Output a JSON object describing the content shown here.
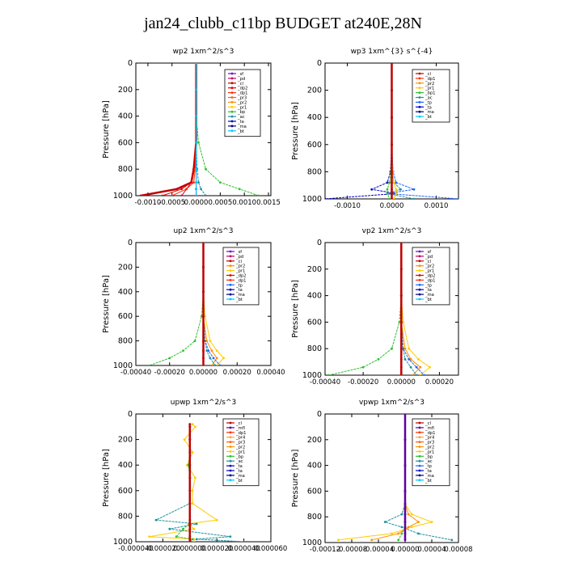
{
  "title": "jan24_clubb_c11bp  BUDGET at240E,28N",
  "colors": {
    "bt": "#00c8ff",
    "ma": "#000080",
    "ta": "#0000c8",
    "tp": "#1e64ff",
    "ac": "#2090a0",
    "bp": "#30c030",
    "pr1": "#ffcc00",
    "pr2": "#ff9000",
    "pr3": "#ff6000",
    "dp1": "#ff3000",
    "dp2": "#e00000",
    "pd": "#c00060",
    "sf": "#8000c0",
    "cl": "#c00000",
    "mfl": "#6000a0",
    "pr4": "#ffa040"
  },
  "chart_data": [
    {
      "type": "line",
      "title": "wp2   1xm^2/s^3",
      "ylabel": "Pressure [hPa]",
      "ylim": [
        1000,
        0
      ],
      "xlim": [
        -0.00125,
        0.00155
      ],
      "xticks": [
        -0.001,
        -0.0005,
        0.0,
        0.0005,
        0.001,
        0.0015
      ],
      "xtick_labels": [
        "-0.0010",
        "-0.0005",
        "0.0000",
        "0.0005",
        "0.0010",
        "0.0015"
      ],
      "yticks": [
        0,
        200,
        400,
        600,
        800,
        1000
      ],
      "legend": [
        "_sf",
        "_pd",
        "_cl",
        "_dp2",
        "_dp1",
        "_pr3",
        "_pr2",
        "_pr1",
        "_bp",
        "_ac",
        "_ta",
        "_ma",
        "_bt"
      ],
      "series": [
        {
          "key": "sf",
          "x": [
            0,
            0,
            0,
            0,
            0,
            0,
            0,
            0
          ],
          "y": [
            0,
            200,
            400,
            600,
            800,
            900,
            950,
            1000
          ]
        },
        {
          "key": "pd",
          "x": [
            0,
            0,
            0,
            0,
            -5e-05,
            -0.0001,
            -0.0002,
            -0.0003
          ],
          "y": [
            0,
            200,
            400,
            600,
            800,
            900,
            950,
            1000
          ]
        },
        {
          "key": "cl",
          "x": [
            0,
            0,
            0,
            0,
            -5e-05,
            -0.0001,
            -0.0004,
            -0.00115
          ],
          "y": [
            0,
            200,
            400,
            600,
            800,
            900,
            950,
            1000
          ]
        },
        {
          "key": "dp2",
          "x": [
            0,
            0,
            0,
            0,
            -3e-05,
            -0.0001,
            -0.0003,
            -0.0007
          ],
          "y": [
            0,
            200,
            400,
            600,
            800,
            900,
            950,
            1000
          ]
        },
        {
          "key": "dp1",
          "x": [
            0,
            0,
            0,
            0,
            -2e-05,
            -5e-05,
            -0.0002,
            -0.0005
          ],
          "y": [
            0,
            200,
            400,
            600,
            800,
            900,
            950,
            1000
          ]
        },
        {
          "key": "bp",
          "x": [
            0,
            0,
            0,
            5e-05,
            0.0002,
            0.0005,
            0.0009,
            0.0013
          ],
          "y": [
            0,
            200,
            400,
            600,
            800,
            900,
            950,
            1000
          ]
        },
        {
          "key": "ac",
          "x": [
            0,
            0,
            0,
            0,
            2e-05,
            5e-05,
            0.0001,
            0.0002
          ],
          "y": [
            0,
            200,
            400,
            600,
            800,
            900,
            950,
            1000
          ]
        },
        {
          "key": "bt",
          "x": [
            0,
            0,
            0,
            0,
            0,
            0,
            0,
            0
          ],
          "y": [
            0,
            200,
            400,
            600,
            800,
            900,
            950,
            1000
          ]
        }
      ]
    },
    {
      "type": "line",
      "title": "wp3   1xm^{3} s^{-4}",
      "ylabel": "Pressure [hPa]",
      "ylim": [
        1000,
        0
      ],
      "xlim": [
        -0.0015,
        0.0015
      ],
      "xticks": [
        -0.001,
        0.0,
        0.001
      ],
      "xtick_labels": [
        "-0.0010",
        "0.0000",
        "0.0010"
      ],
      "yticks": [
        0,
        200,
        400,
        600,
        800,
        1000
      ],
      "legend": [
        "_cl",
        "_dp1",
        "_pr2",
        "_pr1",
        "_bp1",
        "_ac",
        "_tp",
        "_ta",
        "_ma",
        "_bt"
      ],
      "series": [
        {
          "key": "ta",
          "x": [
            0,
            0,
            0,
            0,
            -3e-05,
            -0.0001,
            -0.00045,
            0.0001,
            -0.0015
          ],
          "y": [
            0,
            200,
            400,
            600,
            800,
            880,
            930,
            960,
            1000
          ]
        },
        {
          "key": "tp",
          "x": [
            0,
            0,
            0,
            0,
            3e-05,
            0.0001,
            0.0005,
            -0.0001,
            0.0015
          ],
          "y": [
            0,
            200,
            400,
            600,
            800,
            880,
            930,
            960,
            1000
          ]
        },
        {
          "key": "ac",
          "x": [
            0,
            0,
            0,
            0,
            0,
            5e-05,
            0.0002,
            -0.0001,
            0.0005
          ],
          "y": [
            0,
            200,
            400,
            600,
            800,
            880,
            930,
            960,
            1000
          ]
        },
        {
          "key": "pr1",
          "x": [
            0,
            0,
            0,
            0,
            2e-05,
            5e-05,
            0.0001,
            0.0001,
            5e-05
          ],
          "y": [
            0,
            200,
            400,
            600,
            800,
            880,
            930,
            960,
            1000
          ]
        },
        {
          "key": "bp",
          "x": [
            0,
            0,
            0,
            0,
            -2e-05,
            -5e-05,
            -0.0001,
            -0.0001,
            -5e-05
          ],
          "y": [
            0,
            200,
            400,
            600,
            800,
            880,
            930,
            960,
            1000
          ]
        },
        {
          "key": "cl",
          "x": [
            0,
            0,
            0,
            0,
            0,
            0,
            0,
            0,
            0
          ],
          "y": [
            0,
            200,
            400,
            600,
            800,
            880,
            930,
            960,
            1000
          ]
        }
      ]
    },
    {
      "type": "line",
      "title": "up2   1xm^2/s^3",
      "ylabel": "Pressure [hPa]",
      "ylim": [
        1000,
        0
      ],
      "xlim": [
        -0.0004,
        0.0004
      ],
      "xticks": [
        -0.0004,
        -0.0002,
        0.0,
        0.0002,
        0.0004
      ],
      "xtick_labels": [
        "-0.00040",
        "-0.00020",
        "0.00000",
        "0.00020",
        "0.00040"
      ],
      "yticks": [
        0,
        200,
        400,
        600,
        800,
        1000
      ],
      "legend": [
        "_sf",
        "_pd",
        "_cl",
        "_pr2",
        "_pr1",
        "_dp2",
        "_dp1",
        "_tp",
        "_ta",
        "_ma",
        "_bt"
      ],
      "series": [
        {
          "key": "bp",
          "x": [
            0,
            0,
            0,
            -1e-05,
            -5e-05,
            -0.00012,
            -0.0002,
            -0.00032
          ],
          "y": [
            0,
            200,
            400,
            600,
            800,
            880,
            940,
            1000
          ]
        },
        {
          "key": "pr1",
          "x": [
            0,
            0,
            0,
            1e-05,
            4e-05,
            8e-05,
            0.00012,
            8e-05
          ],
          "y": [
            0,
            200,
            400,
            600,
            800,
            880,
            940,
            1000
          ]
        },
        {
          "key": "pr2",
          "x": [
            0,
            0,
            0,
            0,
            2e-05,
            5e-05,
            8e-05,
            5e-05
          ],
          "y": [
            0,
            200,
            400,
            600,
            800,
            880,
            940,
            1000
          ]
        },
        {
          "key": "tp",
          "x": [
            0,
            0,
            0,
            0,
            1e-05,
            3e-05,
            6e-05,
            0.0001
          ],
          "y": [
            0,
            200,
            400,
            600,
            800,
            880,
            940,
            1000
          ]
        },
        {
          "key": "ac",
          "x": [
            0,
            0,
            0,
            0,
            1e-05,
            2e-05,
            4e-05,
            7e-05
          ],
          "y": [
            0,
            200,
            400,
            600,
            800,
            880,
            940,
            1000
          ]
        },
        {
          "key": "cl",
          "x": [
            0,
            0,
            0,
            0,
            0,
            0,
            0,
            0
          ],
          "y": [
            0,
            200,
            400,
            600,
            800,
            880,
            940,
            1000
          ]
        }
      ]
    },
    {
      "type": "line",
      "title": "vp2   1xm^2/s^3",
      "ylabel": "Pressure [hPa]",
      "ylim": [
        1000,
        0
      ],
      "xlim": [
        -0.0004,
        0.0003
      ],
      "xticks": [
        -0.0004,
        -0.0002,
        0.0,
        0.0002
      ],
      "xtick_labels": [
        "-0.00040",
        "-0.00020",
        "0.00000",
        "0.00020"
      ],
      "yticks": [
        0,
        200,
        400,
        600,
        800,
        1000
      ],
      "legend": [
        "_sf",
        "_pd",
        "_cl",
        "_pr2",
        "_pr1",
        "_dp2",
        "_dp1",
        "_tp",
        "_ta",
        "_ma",
        "_bt"
      ],
      "series": [
        {
          "key": "bp",
          "x": [
            0,
            0,
            0,
            -1e-05,
            -5e-05,
            -0.00012,
            -0.0002,
            -0.00038
          ],
          "y": [
            0,
            200,
            400,
            600,
            800,
            880,
            940,
            1000
          ]
        },
        {
          "key": "pr1",
          "x": [
            0,
            0,
            0,
            1e-05,
            4e-05,
            9e-05,
            0.00015,
            0.0001
          ],
          "y": [
            0,
            200,
            400,
            600,
            800,
            880,
            940,
            1000
          ]
        },
        {
          "key": "pr2",
          "x": [
            0,
            0,
            0,
            0,
            2e-05,
            5e-05,
            0.0001,
            6e-05
          ],
          "y": [
            0,
            200,
            400,
            600,
            800,
            880,
            940,
            1000
          ]
        },
        {
          "key": "tp",
          "x": [
            0,
            0,
            0,
            0,
            1e-05,
            4e-05,
            8e-05,
            0.00012
          ],
          "y": [
            0,
            200,
            400,
            600,
            800,
            880,
            940,
            1000
          ]
        },
        {
          "key": "ac",
          "x": [
            0,
            0,
            0,
            0,
            1e-05,
            2e-05,
            5e-05,
            8e-05
          ],
          "y": [
            0,
            200,
            400,
            600,
            800,
            880,
            940,
            1000
          ]
        },
        {
          "key": "cl",
          "x": [
            0,
            0,
            0,
            0,
            0,
            0,
            0,
            0
          ],
          "y": [
            0,
            200,
            400,
            600,
            800,
            880,
            940,
            1000
          ]
        }
      ]
    },
    {
      "type": "line",
      "title": "upwp   1xm^2/s^3",
      "ylabel": "Pressure [hPa]",
      "ylim": [
        1000,
        0
      ],
      "xlim": [
        -4e-05,
        6e-05
      ],
      "xticks": [
        -4e-05,
        -2e-05,
        0.0,
        2e-05,
        4e-05,
        6e-05
      ],
      "xtick_labels": [
        "-0.000040",
        "-0.000020",
        "0.000000",
        "0.000020",
        "0.000040",
        "0.000060"
      ],
      "yticks": [
        0,
        200,
        400,
        600,
        800,
        1000
      ],
      "legend": [
        "_cl",
        "_mfl",
        "_dp1",
        "_pr4",
        "_pr3",
        "_pr2",
        "_pr1",
        "_bp",
        "_ac",
        "_ta",
        "_ta",
        "_ma",
        "_bt"
      ],
      "series": [
        {
          "key": "pr1",
          "x": [
            2e-06,
            4e-06,
            -4e-06,
            2e-06,
            -2e-06,
            4e-06,
            2e-06,
            2e-06,
            2e-05,
            -1e-06,
            3e-06,
            -3e-05,
            3e-06,
            3e-06
          ],
          "y": [
            80,
            100,
            200,
            300,
            400,
            500,
            600,
            700,
            830,
            860,
            900,
            960,
            980,
            1000
          ]
        },
        {
          "key": "ac",
          "x": [
            0,
            0,
            0,
            0,
            0,
            0,
            0,
            0,
            -2.5e-05,
            5e-06,
            -1.5e-05,
            3e-05,
            5e-06,
            4e-05
          ],
          "y": [
            80,
            100,
            200,
            300,
            400,
            500,
            600,
            700,
            830,
            860,
            900,
            960,
            980,
            1000
          ]
        },
        {
          "key": "bp",
          "x": [
            0,
            0,
            0,
            0,
            -1e-06,
            0,
            0,
            0,
            0,
            0,
            -5e-06,
            -1e-05,
            2e-06,
            0
          ],
          "y": [
            80,
            100,
            200,
            300,
            400,
            500,
            600,
            700,
            830,
            860,
            900,
            960,
            980,
            1000
          ]
        },
        {
          "key": "cl",
          "x": [
            0,
            0,
            0,
            0,
            0,
            0,
            0,
            0,
            0,
            0,
            0,
            0,
            0,
            0
          ],
          "y": [
            80,
            100,
            200,
            300,
            400,
            500,
            600,
            700,
            830,
            860,
            900,
            960,
            980,
            1000
          ]
        }
      ]
    },
    {
      "type": "line",
      "title": "vpwp   1xm^2/s^3",
      "ylabel": "Pressure [hPa]",
      "ylim": [
        1000,
        0
      ],
      "xlim": [
        -0.00012,
        8e-05
      ],
      "xticks": [
        -0.00012,
        -8e-05,
        -4e-05,
        0.0,
        4e-05,
        8e-05
      ],
      "xtick_labels": [
        "-0.00012",
        "-0.00008",
        "-0.00004",
        "0.00000",
        "0.00004",
        "0.00008"
      ],
      "yticks": [
        0,
        200,
        400,
        600,
        800,
        1000
      ],
      "legend": [
        "_cl",
        "_mfl",
        "_dp1",
        "_pr4",
        "_pr3",
        "_pr2",
        "_pr1",
        "_bp",
        "_ac",
        "_tp",
        "_ta",
        "_ma",
        "_bt"
      ],
      "series": [
        {
          "key": "pr1",
          "x": [
            0,
            0,
            0,
            0,
            0,
            1e-05,
            4e-05,
            1e-05,
            -2e-05,
            -0.0001
          ],
          "y": [
            0,
            200,
            400,
            600,
            700,
            780,
            840,
            880,
            930,
            980
          ]
        },
        {
          "key": "ac",
          "x": [
            0,
            0,
            0,
            0,
            0,
            -5e-06,
            -3e-05,
            -5e-06,
            2e-05,
            7e-05
          ],
          "y": [
            0,
            200,
            400,
            600,
            700,
            780,
            840,
            880,
            930,
            980
          ]
        },
        {
          "key": "pr2",
          "x": [
            0,
            0,
            0,
            0,
            0,
            5e-06,
            2e-05,
            5e-06,
            -1e-05,
            -5e-05
          ],
          "y": [
            0,
            200,
            400,
            600,
            700,
            780,
            840,
            880,
            930,
            980
          ]
        },
        {
          "key": "bp",
          "x": [
            0,
            0,
            0,
            0,
            0,
            0,
            0,
            0,
            -5e-06,
            -1e-05
          ],
          "y": [
            0,
            200,
            400,
            600,
            700,
            780,
            840,
            880,
            930,
            980
          ]
        },
        {
          "key": "mfl",
          "x": [
            0,
            0,
            0,
            0,
            0,
            0,
            0,
            0,
            0,
            0
          ],
          "y": [
            0,
            200,
            400,
            600,
            700,
            780,
            840,
            880,
            930,
            980
          ]
        }
      ]
    }
  ]
}
